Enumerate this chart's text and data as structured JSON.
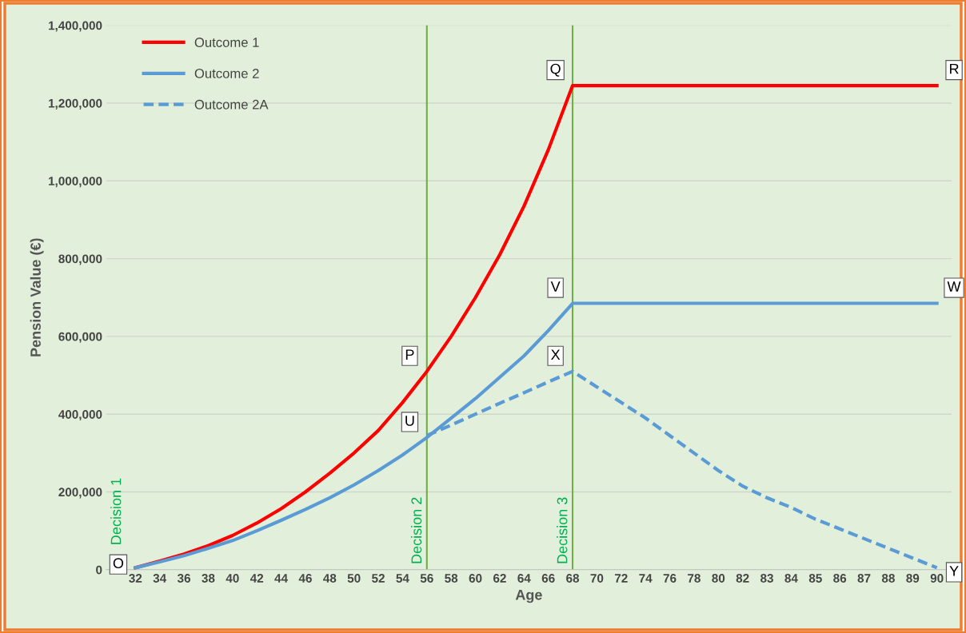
{
  "chart_data": {
    "type": "line",
    "xlabel": "Age",
    "ylabel": "Pension Value (€)",
    "categories": [
      "32",
      "34",
      "36",
      "38",
      "40",
      "42",
      "44",
      "46",
      "48",
      "50",
      "52",
      "54",
      "56",
      "58",
      "60",
      "62",
      "64",
      "66",
      "68",
      "70",
      "72",
      "74",
      "76",
      "78",
      "80",
      "82",
      "83",
      "84",
      "85",
      "86",
      "87",
      "88",
      "89",
      "90"
    ],
    "series": [
      {
        "name": "Outcome 1",
        "color": "#ff0000",
        "line_style": "solid",
        "values": [
          5000,
          22000,
          40000,
          62000,
          88000,
          120000,
          157000,
          200000,
          248000,
          300000,
          358000,
          430000,
          510000,
          600000,
          700000,
          810000,
          935000,
          1080000,
          1245000,
          1245000,
          1245000,
          1245000,
          1245000,
          1245000,
          1245000,
          1245000,
          1245000,
          1245000,
          1245000,
          1245000,
          1245000,
          1245000,
          1245000,
          1245000
        ]
      },
      {
        "name": "Outcome 2",
        "color": "#5b9bd5",
        "line_style": "solid",
        "values": [
          5000,
          20000,
          36000,
          55000,
          75000,
          100000,
          127000,
          155000,
          185000,
          218000,
          255000,
          295000,
          340000,
          390000,
          440000,
          495000,
          550000,
          615000,
          685000,
          685000,
          685000,
          685000,
          685000,
          685000,
          685000,
          685000,
          685000,
          685000,
          685000,
          685000,
          685000,
          685000,
          685000,
          685000
        ]
      },
      {
        "name": "Outcome 2A",
        "color": "#5b9bd5",
        "line_style": "dashed",
        "values": [
          null,
          null,
          null,
          null,
          null,
          null,
          null,
          null,
          null,
          null,
          null,
          null,
          345000,
          372000,
          400000,
          428000,
          455000,
          483000,
          510000,
          470000,
          430000,
          390000,
          345000,
          300000,
          255000,
          215000,
          185000,
          160000,
          130000,
          105000,
          80000,
          55000,
          30000,
          5000
        ]
      }
    ],
    "ylim": [
      0,
      1400000
    ],
    "yticks": [
      0,
      {
        "value": 200000,
        "label": "200,000"
      },
      {
        "value": 400000,
        "label": "400,000"
      },
      {
        "value": 600000,
        "label": "600,000"
      },
      {
        "value": 800000,
        "label": "800,000"
      },
      {
        "value": 1000000,
        "label": "1,000,000"
      },
      {
        "value": 1200000,
        "label": "1,200,000"
      },
      {
        "value": 1400000,
        "label": "1,400,000"
      }
    ],
    "grid": "y",
    "legend": "top left",
    "marker": "none",
    "ref_lines": [
      {
        "axis": "x",
        "value": "56",
        "label": "Decision 2",
        "color": "#70ad47"
      },
      {
        "axis": "x",
        "value": "68",
        "label": "Decision 3",
        "color": "#70ad47"
      }
    ],
    "annotations": [
      "Decision 1",
      {
        "text": "O",
        "x": "32",
        "y": 5000
      },
      {
        "text": "P",
        "x": "56",
        "y": 510000
      },
      {
        "text": "Q",
        "x": "68",
        "y": 1245000
      },
      {
        "text": "R",
        "x": "90",
        "y": 1245000
      },
      {
        "text": "U",
        "x": "56",
        "y": 340000
      },
      {
        "text": "V",
        "x": "68",
        "y": 685000
      },
      {
        "text": "W",
        "x": "90",
        "y": 685000
      },
      {
        "text": "X",
        "x": "68",
        "y": 510000
      },
      {
        "text": "Y",
        "x": "90",
        "y": 5000
      }
    ]
  }
}
